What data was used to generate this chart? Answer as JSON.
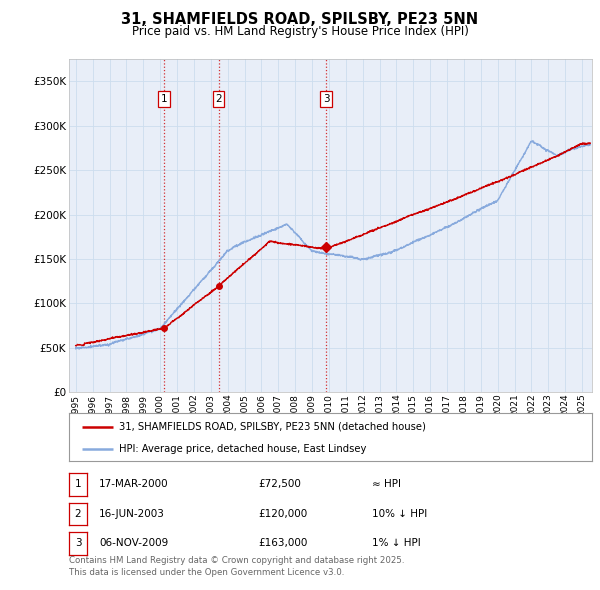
{
  "title": "31, SHAMFIELDS ROAD, SPILSBY, PE23 5NN",
  "subtitle": "Price paid vs. HM Land Registry's House Price Index (HPI)",
  "ytick_values": [
    0,
    50000,
    100000,
    150000,
    200000,
    250000,
    300000,
    350000
  ],
  "ylim": [
    0,
    375000
  ],
  "xlim_start": 1994.6,
  "xlim_end": 2025.6,
  "sale_color": "#cc0000",
  "hpi_color": "#88aadd",
  "sale_points": [
    {
      "year": 2000.21,
      "price": 72500,
      "label": "1"
    },
    {
      "year": 2003.46,
      "price": 120000,
      "label": "2"
    },
    {
      "year": 2009.85,
      "price": 163000,
      "label": "3"
    }
  ],
  "vline_color": "#cc0000",
  "legend_entry1": "31, SHAMFIELDS ROAD, SPILSBY, PE23 5NN (detached house)",
  "legend_entry2": "HPI: Average price, detached house, East Lindsey",
  "table_rows": [
    {
      "num": "1",
      "date": "17-MAR-2000",
      "price": "£72,500",
      "hpi": "≈ HPI"
    },
    {
      "num": "2",
      "date": "16-JUN-2003",
      "price": "£120,000",
      "hpi": "10% ↓ HPI"
    },
    {
      "num": "3",
      "date": "06-NOV-2009",
      "price": "£163,000",
      "hpi": "1% ↓ HPI"
    }
  ],
  "footnote": "Contains HM Land Registry data © Crown copyright and database right 2025.\nThis data is licensed under the Open Government Licence v3.0.",
  "bg_color": "#ffffff",
  "grid_color": "#ccddee",
  "plot_bg": "#e8eef8"
}
